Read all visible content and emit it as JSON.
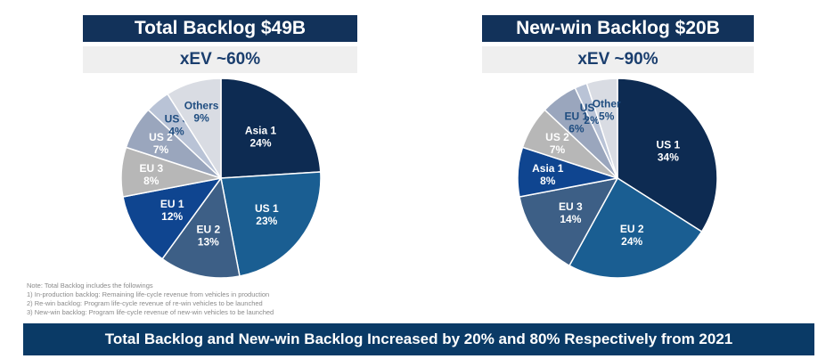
{
  "chart_data": [
    {
      "type": "pie",
      "title": "Total Backlog  $49B",
      "subtitle": "xEV ~60%",
      "slices": [
        {
          "label": "Asia 1",
          "value": 24,
          "display": "24%",
          "color": "#0d2b52",
          "text_color": "#ffffff"
        },
        {
          "label": "US 1",
          "value": 23,
          "display": "23%",
          "color": "#1a5e92",
          "text_color": "#ffffff"
        },
        {
          "label": "EU 2",
          "value": 13,
          "display": "13%",
          "color": "#3d5f86",
          "text_color": "#ffffff"
        },
        {
          "label": "EU 1",
          "value": 12,
          "display": "12%",
          "color": "#0f4590",
          "text_color": "#ffffff"
        },
        {
          "label": "EU 3",
          "value": 8,
          "display": "8%",
          "color": "#b7b7b7",
          "text_color": "#ffffff"
        },
        {
          "label": "US 2",
          "value": 7,
          "display": "7%",
          "color": "#9aa6bd",
          "text_color": "#ffffff"
        },
        {
          "label": "US 3",
          "value": 4,
          "display": "4%",
          "color": "#b9c3d6",
          "text_color": "#1f4d80"
        },
        {
          "label": "Others",
          "value": 9,
          "display": "9%",
          "color": "#d9dce3",
          "text_color": "#1f4d80"
        }
      ]
    },
    {
      "type": "pie",
      "title": "New-win Backlog  $20B",
      "subtitle": "xEV  ~90%",
      "slices": [
        {
          "label": "US 1",
          "value": 34,
          "display": "34%",
          "color": "#0d2b52",
          "text_color": "#ffffff"
        },
        {
          "label": "EU 2",
          "value": 24,
          "display": "24%",
          "color": "#1a5e92",
          "text_color": "#ffffff"
        },
        {
          "label": "EU 3",
          "value": 14,
          "display": "14%",
          "color": "#3d5f86",
          "text_color": "#ffffff"
        },
        {
          "label": "Asia 1",
          "value": 8,
          "display": "8%",
          "color": "#0f4590",
          "text_color": "#ffffff"
        },
        {
          "label": "US 2",
          "value": 7,
          "display": "7%",
          "color": "#b7b7b7",
          "text_color": "#ffffff"
        },
        {
          "label": "EU 1",
          "value": 6,
          "display": "6%",
          "color": "#9aa6bd",
          "text_color": "#1f4d80"
        },
        {
          "label": "US 3",
          "value": 2,
          "display": "2%",
          "color": "#b9c3d6",
          "text_color": "#1f4d80"
        },
        {
          "label": "Other",
          "value": 5,
          "display": "5%",
          "color": "#d9dce3",
          "text_color": "#1f4d80"
        }
      ]
    }
  ],
  "notes": {
    "line1": "Note: Total Backlog includes the followings",
    "line2": "1) In-production backlog: Remaining life-cycle revenue from vehicles in production",
    "line3": "2) Re-win backlog: Program life-cycle revenue of re-win vehicles to be launched",
    "line4": "3) New-win backlog: Program life-cycle revenue of new-win vehicles to be launched"
  },
  "footer": "Total Backlog and New-win Backlog Increased by 20% and 80% Respectively from 2021"
}
